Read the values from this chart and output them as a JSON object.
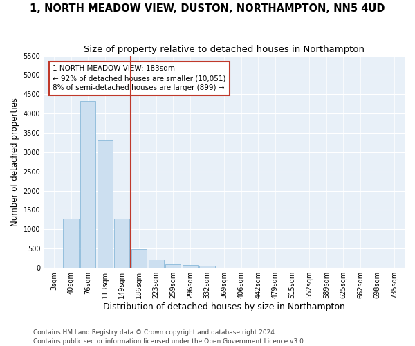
{
  "title": "1, NORTH MEADOW VIEW, DUSTON, NORTHAMPTON, NN5 4UD",
  "subtitle": "Size of property relative to detached houses in Northampton",
  "xlabel": "Distribution of detached houses by size in Northampton",
  "ylabel": "Number of detached properties",
  "bar_labels": [
    "3sqm",
    "40sqm",
    "76sqm",
    "113sqm",
    "149sqm",
    "186sqm",
    "223sqm",
    "259sqm",
    "296sqm",
    "332sqm",
    "369sqm",
    "406sqm",
    "442sqm",
    "479sqm",
    "515sqm",
    "552sqm",
    "589sqm",
    "625sqm",
    "662sqm",
    "698sqm",
    "735sqm"
  ],
  "bar_values": [
    0,
    1270,
    4330,
    3300,
    1280,
    490,
    220,
    90,
    75,
    60,
    0,
    0,
    0,
    0,
    0,
    0,
    0,
    0,
    0,
    0,
    0
  ],
  "bar_color": "#ccdff0",
  "bar_edge_color": "#7aafd4",
  "vline_color": "#c0392b",
  "annotation_text": "1 NORTH MEADOW VIEW: 183sqm\n← 92% of detached houses are smaller (10,051)\n8% of semi-detached houses are larger (899) →",
  "annotation_box_color": "#c0392b",
  "ylim": [
    0,
    5500
  ],
  "yticks": [
    0,
    500,
    1000,
    1500,
    2000,
    2500,
    3000,
    3500,
    4000,
    4500,
    5000,
    5500
  ],
  "background_color": "#e8f0f8",
  "grid_color": "#ffffff",
  "footer": "Contains HM Land Registry data © Crown copyright and database right 2024.\nContains public sector information licensed under the Open Government Licence v3.0.",
  "title_fontsize": 10.5,
  "subtitle_fontsize": 9.5,
  "xlabel_fontsize": 9,
  "ylabel_fontsize": 8.5,
  "tick_fontsize": 7,
  "footer_fontsize": 6.5,
  "vline_index": 5
}
